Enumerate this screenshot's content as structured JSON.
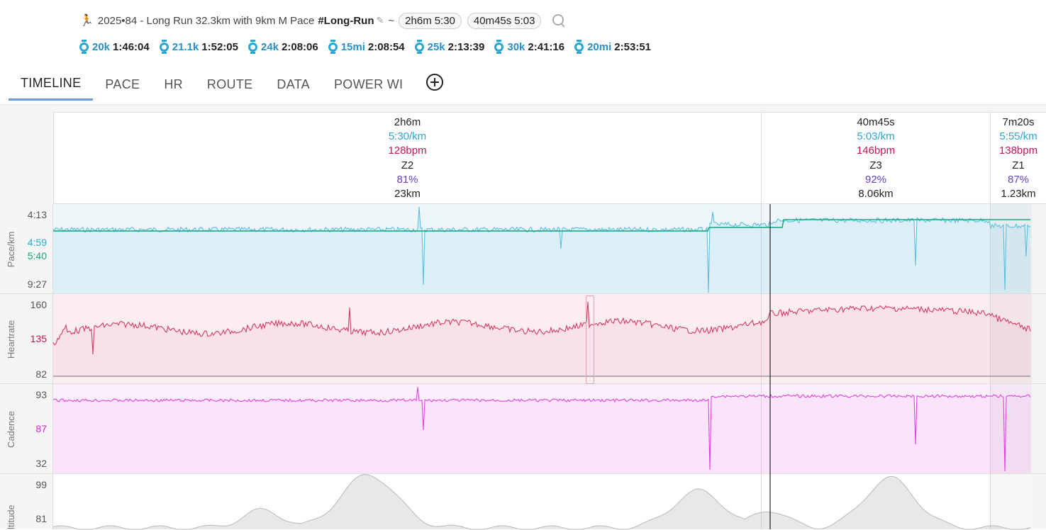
{
  "activity": {
    "runner_emoji": "🏃",
    "title": "2025•84 - Long Run 32.3km with 9km M Pace",
    "tag": "#Long-Run",
    "tilde": "~",
    "pills": [
      {
        "time": "2h6m",
        "pace": "5:30"
      },
      {
        "time": "40m45s",
        "pace": "5:03"
      }
    ]
  },
  "splits": [
    {
      "dist": "20k",
      "time": "1:46:04"
    },
    {
      "dist": "21.1k",
      "time": "1:52:05"
    },
    {
      "dist": "24k",
      "time": "2:08:06"
    },
    {
      "dist": "15mi",
      "time": "2:08:54"
    },
    {
      "dist": "25k",
      "time": "2:13:39"
    },
    {
      "dist": "30k",
      "time": "2:41:16"
    },
    {
      "dist": "20mi",
      "time": "2:53:51"
    }
  ],
  "tabs": [
    "TIMELINE",
    "PACE",
    "HR",
    "ROUTE",
    "DATA",
    "POWER WI"
  ],
  "segments": [
    {
      "dur": "2h6m",
      "pace": "5:30/km",
      "hr": "128bpm",
      "zone": "Z2",
      "pct": "81%",
      "dist": "23km"
    },
    {
      "dur": "40m45s",
      "pace": "5:03/km",
      "hr": "146bpm",
      "zone": "Z3",
      "pct": "92%",
      "dist": "8.06km"
    },
    {
      "dur": "7m20s",
      "pace": "5:55/km",
      "hr": "138bpm",
      "zone": "Z1",
      "pct": "87%",
      "dist": "1.23km"
    }
  ],
  "axes": {
    "pace": {
      "title": "Pace/km",
      "ticks": [
        "4:13",
        "4:59",
        "5:40",
        "9:27"
      ]
    },
    "hr": {
      "title": "Heartrate",
      "ticks": [
        "160",
        "135",
        "82"
      ]
    },
    "cadence": {
      "title": "Cadence",
      "ticks": [
        "93",
        "87",
        "32"
      ]
    },
    "altitude": {
      "title": "ltitude",
      "ticks": [
        "99",
        "81"
      ]
    }
  },
  "colors": {
    "pace": "#5bbfe0",
    "pace_seg": "#1aa37a",
    "hr": "#d63a63",
    "cadence": "#e040e0",
    "altitude": "#bdbdbd",
    "accent": "#2a8fc6"
  }
}
